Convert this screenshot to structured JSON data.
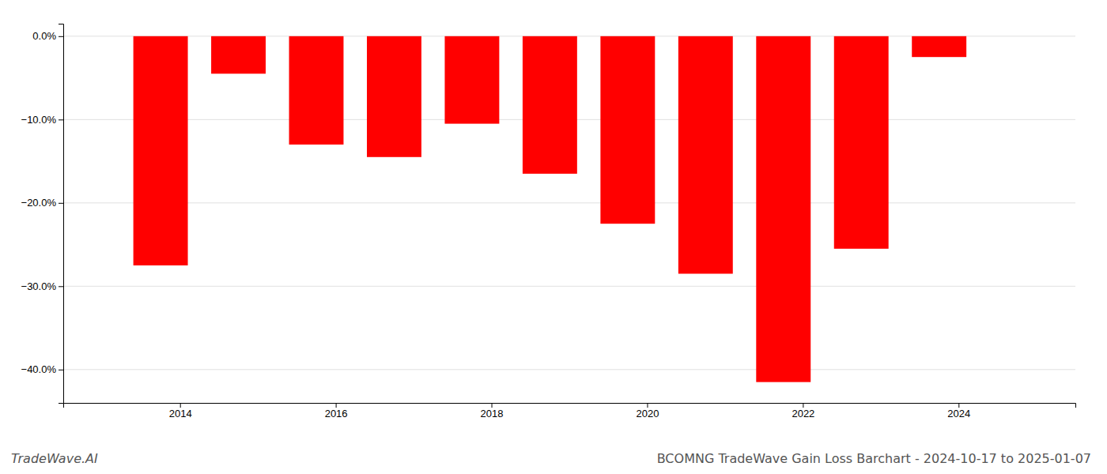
{
  "chart_data": {
    "type": "bar",
    "title": "BCOMNG TradeWave Gain Loss Barchart - 2024-10-17 to 2025-01-07",
    "annotations": [
      "TradeWave.AI"
    ],
    "x": [
      2013.75,
      2014.75,
      2015.75,
      2016.75,
      2017.75,
      2018.75,
      2019.75,
      2020.75,
      2021.75,
      2022.75,
      2023.75
    ],
    "values": [
      -27.5,
      -4.5,
      -13.0,
      -14.5,
      -10.5,
      -16.5,
      -22.5,
      -28.5,
      -41.5,
      -25.5,
      -2.5
    ],
    "color": "#ff0000",
    "xlim": [
      2012.5,
      2025.5
    ],
    "ylim": [
      -44,
      1.5
    ],
    "xticks": [
      2014,
      2016,
      2018,
      2020,
      2022,
      2024
    ],
    "yticks": [
      {
        "value": 0,
        "label": "0.0%"
      },
      {
        "value": -10,
        "label": "−10.0%"
      },
      {
        "value": -20,
        "label": "−20.0%"
      },
      {
        "value": -30,
        "label": "−30.0%"
      },
      {
        "value": -40,
        "label": "−40.0%"
      }
    ],
    "grid": true
  }
}
